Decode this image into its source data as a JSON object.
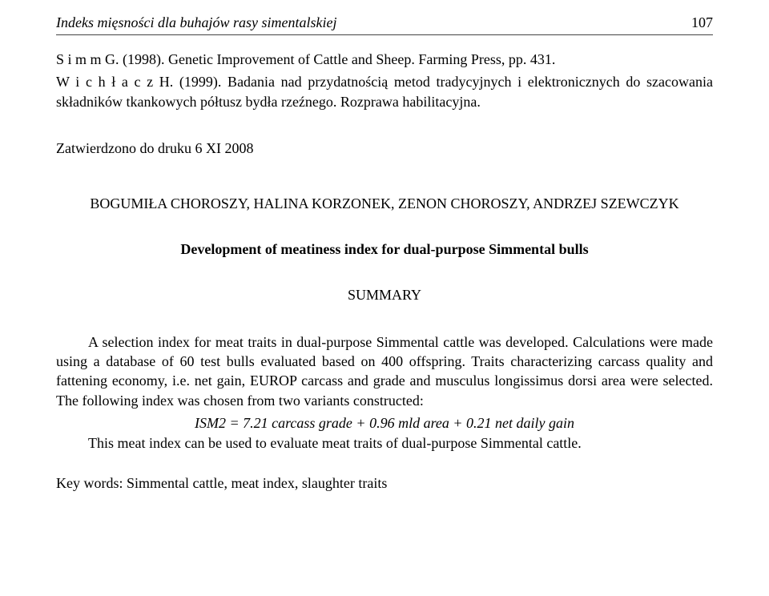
{
  "runningHead": {
    "title": "Indeks mięsności dla buhajów rasy simentalskiej",
    "pageNumber": "107"
  },
  "references": {
    "ref1": "S i m m  G. (1998). Genetic Improvement of Cattle and Sheep. Farming Press, pp. 431.",
    "ref2": "W i c h ł a c z  H. (1999). Badania nad przydatnością metod tradycyjnych i elektronicznych do szacowania składników tkankowych półtusz bydła rzeźnego. Rozprawa habilitacyjna."
  },
  "approvedLine": "Zatwierdzono do druku 6 XI 2008",
  "authorsLine": "BOGUMIŁA CHOROSZY, HALINA KORZONEK, ZENON CHOROSZY, ANDRZEJ SZEWCZYK",
  "articleTitle": "Development of meatiness index for dual-purpose Simmental bulls",
  "summaryLabel": "SUMMARY",
  "summaryBody": "A selection index for meat traits in dual-purpose Simmental cattle was developed. Calculations were made using a database of 60 test bulls evaluated based on 400 offspring. Traits characterizing carcass quality and fattening economy, i.e. net gain, EUROP carcass and grade and musculus longissimus dorsi area were selected. The following index was chosen from two variants constructed:",
  "formula": "ISM2 = 7.21 carcass grade + 0.96 mld area + 0.21 net daily gain",
  "summaryTail": "This meat index can be used to evaluate meat traits of dual-purpose Simmental cattle.",
  "keywords": "Key words: Simmental cattle, meat index, slaughter traits"
}
